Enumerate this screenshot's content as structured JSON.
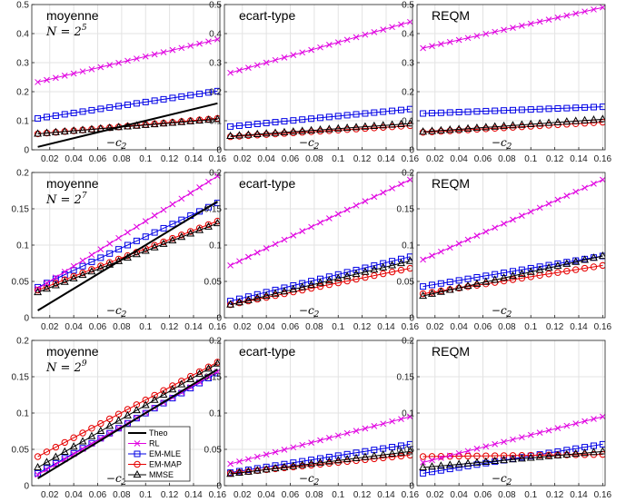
{
  "chart_data": {
    "type": "line",
    "x": [
      0.01,
      0.0175,
      0.025,
      0.0325,
      0.04,
      0.0475,
      0.055,
      0.0625,
      0.07,
      0.0775,
      0.085,
      0.0925,
      0.1,
      0.1075,
      0.115,
      0.1225,
      0.13,
      0.1375,
      0.145,
      0.1525,
      0.16
    ],
    "xticks": [
      "0.02",
      "0.04",
      "0.06",
      "0.08",
      "0.1",
      "0.12",
      "0.14",
      "0.16"
    ],
    "xlim": [
      0.005,
      0.162
    ],
    "xlabel": "−c",
    "xlabel_sub": "2",
    "legend": {
      "placement": "lower-right",
      "entries": [
        "Theo",
        "RL",
        "EM-MLE",
        "EM-MAP",
        "MMSE"
      ]
    },
    "colors": {
      "Theo": "#000000",
      "RL": "#e000e0",
      "EM-MLE": "#0000e6",
      "EM-MAP": "#e60000",
      "MMSE": "#000000"
    },
    "rows": [
      {
        "ylim": [
          0,
          0.5
        ],
        "yticks": [
          "0",
          "0.1",
          "0.2",
          "0.3",
          "0.4",
          "0.5"
        ],
        "n_label": "N = 2",
        "n_exp": "5",
        "panels": [
          {
            "title": "moyenne",
            "series": [
              {
                "name": "Theo",
                "start": 0.01,
                "end": 0.16
              },
              {
                "name": "RL",
                "start": 0.233,
                "end": 0.38
              },
              {
                "name": "EM-MLE",
                "start": 0.108,
                "end": 0.202
              },
              {
                "name": "EM-MAP",
                "start": 0.055,
                "end": 0.108
              },
              {
                "name": "MMSE",
                "start": 0.055,
                "end": 0.105
              }
            ]
          },
          {
            "title": "ecart-type",
            "series": [
              {
                "name": "RL",
                "start": 0.265,
                "end": 0.44
              },
              {
                "name": "EM-MLE",
                "start": 0.08,
                "end": 0.14
              },
              {
                "name": "EM-MAP",
                "start": 0.045,
                "end": 0.083
              },
              {
                "name": "MMSE",
                "start": 0.047,
                "end": 0.09
              }
            ]
          },
          {
            "title": "REQM",
            "series": [
              {
                "name": "RL",
                "start": 0.35,
                "end": 0.49
              },
              {
                "name": "EM-MLE",
                "start": 0.125,
                "end": 0.148
              },
              {
                "name": "EM-MAP",
                "start": 0.06,
                "end": 0.095
              },
              {
                "name": "MMSE",
                "start": 0.062,
                "end": 0.105
              }
            ]
          }
        ]
      },
      {
        "ylim": [
          0,
          0.2
        ],
        "yticks": [
          "0",
          "0.05",
          "0.1",
          "0.15",
          "0.2"
        ],
        "n_label": "N = 2",
        "n_exp": "7",
        "panels": [
          {
            "title": "moyenne",
            "series": [
              {
                "name": "Theo",
                "start": 0.01,
                "end": 0.16
              },
              {
                "name": "RL",
                "start": 0.04,
                "end": 0.195
              },
              {
                "name": "EM-MLE",
                "start": 0.042,
                "end": 0.158
              },
              {
                "name": "EM-MAP",
                "start": 0.038,
                "end": 0.133
              },
              {
                "name": "MMSE",
                "start": 0.035,
                "end": 0.13
              }
            ]
          },
          {
            "title": "ecart-type",
            "series": [
              {
                "name": "RL",
                "start": 0.072,
                "end": 0.19
              },
              {
                "name": "EM-MLE",
                "start": 0.023,
                "end": 0.084
              },
              {
                "name": "EM-MAP",
                "start": 0.018,
                "end": 0.068
              },
              {
                "name": "MMSE",
                "start": 0.018,
                "end": 0.078
              }
            ]
          },
          {
            "title": "REQM",
            "series": [
              {
                "name": "RL",
                "start": 0.08,
                "end": 0.19
              },
              {
                "name": "EM-MLE",
                "start": 0.043,
                "end": 0.085
              },
              {
                "name": "EM-MAP",
                "start": 0.033,
                "end": 0.072
              },
              {
                "name": "MMSE",
                "start": 0.03,
                "end": 0.085
              }
            ]
          }
        ]
      },
      {
        "ylim": [
          0,
          0.2
        ],
        "yticks": [
          "0",
          "0.05",
          "0.1",
          "0.15",
          "0.2"
        ],
        "n_label": "N = 2",
        "n_exp": "9",
        "panels": [
          {
            "title": "moyenne",
            "series": [
              {
                "name": "Theo",
                "start": 0.01,
                "end": 0.16
              },
              {
                "name": "RL",
                "start": 0.015,
                "end": 0.157
              },
              {
                "name": "EM-MLE",
                "start": 0.017,
                "end": 0.155
              },
              {
                "name": "EM-MAP",
                "start": 0.04,
                "end": 0.17
              },
              {
                "name": "MMSE",
                "start": 0.025,
                "end": 0.168
              }
            ]
          },
          {
            "title": "ecart-type",
            "series": [
              {
                "name": "RL",
                "start": 0.03,
                "end": 0.095
              },
              {
                "name": "EM-MLE",
                "start": 0.018,
                "end": 0.057
              },
              {
                "name": "EM-MAP",
                "start": 0.017,
                "end": 0.042
              },
              {
                "name": "MMSE",
                "start": 0.016,
                "end": 0.047
              }
            ]
          },
          {
            "title": "REQM",
            "series": [
              {
                "name": "RL",
                "start": 0.032,
                "end": 0.095
              },
              {
                "name": "EM-MLE",
                "start": 0.017,
                "end": 0.057
              },
              {
                "name": "EM-MAP",
                "start": 0.04,
                "end": 0.043
              },
              {
                "name": "MMSE",
                "start": 0.025,
                "end": 0.047
              }
            ]
          }
        ]
      }
    ]
  }
}
